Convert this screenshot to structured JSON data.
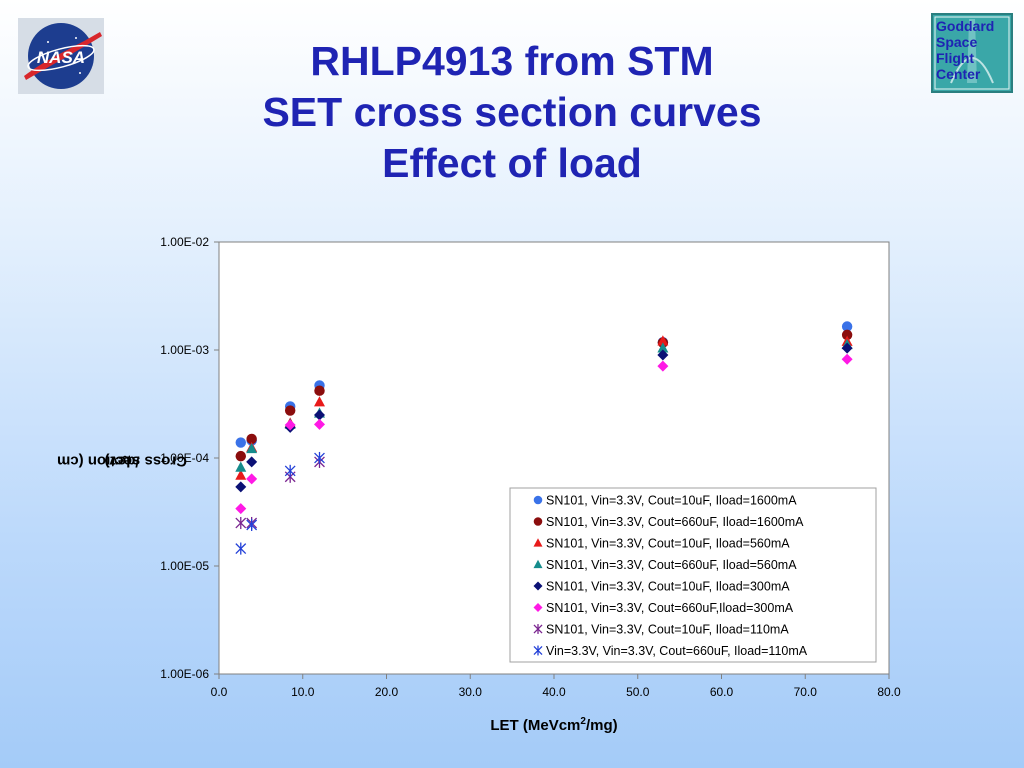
{
  "logos": {
    "nasa": {
      "text": "NASA"
    },
    "goddard": {
      "text": "Goddard Space Flight Center"
    }
  },
  "title": {
    "line1": "RHLP4913 from STM",
    "line2": "SET cross section curves",
    "line3": "Effect of load"
  },
  "axis_labels": {
    "y_main": "Cross section (cm",
    "y_sup": "2",
    "y_tail": "/dev)",
    "x_main": "LET (MeVcm",
    "x_sup": "2",
    "x_tail": "/mg)"
  },
  "chart_data": {
    "type": "scatter",
    "title": "",
    "xlabel": "LET (MeVcm2/mg)",
    "ylabel": "Cross section (cm2/dev)",
    "xlim": [
      0,
      80
    ],
    "ylim": [
      1e-06,
      0.01
    ],
    "yscale": "log",
    "grid": false,
    "legend_position": "lower-right",
    "x_ticks": [
      "0.0",
      "10.0",
      "20.0",
      "30.0",
      "40.0",
      "50.0",
      "60.0",
      "70.0",
      "80.0"
    ],
    "y_ticks": [
      "1.00E-06",
      "1.00E-05",
      "1.00E-04",
      "1.00E-03",
      "1.00E-02"
    ],
    "series": [
      {
        "name": "SN101, Vin=3.3V, Cout=10uF, Iload=1600mA",
        "marker": "circle",
        "color": "#3a72e8",
        "points": [
          [
            2.6,
            0.000139
          ],
          [
            3.9,
            0.000145
          ],
          [
            8.5,
            0.0003
          ],
          [
            12.0,
            0.00047
          ],
          [
            53.0,
            0.00118
          ],
          [
            75.0,
            0.00165
          ]
        ]
      },
      {
        "name": "SN101, Vin=3.3V, Cout=660uF, Iload=1600mA",
        "marker": "circle",
        "color": "#8b0d0d",
        "points": [
          [
            2.6,
            0.000104
          ],
          [
            3.9,
            0.00015
          ],
          [
            8.5,
            0.000275
          ],
          [
            12.0,
            0.00042
          ],
          [
            53.0,
            0.00117
          ],
          [
            75.0,
            0.00138
          ]
        ]
      },
      {
        "name": "SN101, Vin=3.3V, Cout=10uF, Iload=560mA",
        "marker": "triangle",
        "color": "#e81a1a",
        "points": [
          [
            2.6,
            6.9e-05
          ],
          [
            3.9,
            0.000125
          ],
          [
            8.5,
            0.00021
          ],
          [
            12.0,
            0.00033
          ],
          [
            53.0,
            0.00121
          ],
          [
            75.0,
            0.0012
          ]
        ]
      },
      {
        "name": "SN101, Vin=3.3V, Cout=660uF, Iload=560mA",
        "marker": "triangle",
        "color": "#168c8c",
        "points": [
          [
            2.6,
            8.2e-05
          ],
          [
            3.9,
            0.000122
          ],
          [
            8.5,
            0.000205
          ],
          [
            12.0,
            0.00026
          ],
          [
            53.0,
            0.00104
          ],
          [
            75.0,
            0.00112
          ]
        ]
      },
      {
        "name": "SN101, Vin=3.3V, Cout=10uF, Iload=300mA",
        "marker": "diamond",
        "color": "#0b1175",
        "points": [
          [
            2.6,
            5.4e-05
          ],
          [
            3.9,
            9.2e-05
          ],
          [
            8.5,
            0.000192
          ],
          [
            12.0,
            0.00025
          ],
          [
            53.0,
            0.0009
          ],
          [
            75.0,
            0.00104
          ]
        ]
      },
      {
        "name": "SN101, Vin=3.3V, Cout=660uF,Iload=300mA",
        "marker": "diamond",
        "color": "#ff19e5",
        "points": [
          [
            2.6,
            3.4e-05
          ],
          [
            3.9,
            6.4e-05
          ],
          [
            8.5,
            0.000202
          ],
          [
            12.0,
            0.000205
          ],
          [
            53.0,
            0.00071
          ],
          [
            75.0,
            0.00082
          ]
        ]
      },
      {
        "name": "SN101, Vin=3.3V, Cout=10uF, Iload=110mA",
        "marker": "star",
        "color": "#7a2590",
        "points": [
          [
            2.6,
            2.5e-05
          ],
          [
            3.9,
            2.5e-05
          ],
          [
            8.5,
            6.7e-05
          ],
          [
            12.0,
            9.2e-05
          ]
        ]
      },
      {
        "name": "Vin=3.3V, Vin=3.3V, Cout=660uF, Iload=110mA",
        "marker": "star",
        "color": "#2340d8",
        "points": [
          [
            2.6,
            1.45e-05
          ],
          [
            3.9,
            2.4e-05
          ],
          [
            8.5,
            7.6e-05
          ],
          [
            12.0,
            0.0001
          ]
        ]
      }
    ]
  }
}
